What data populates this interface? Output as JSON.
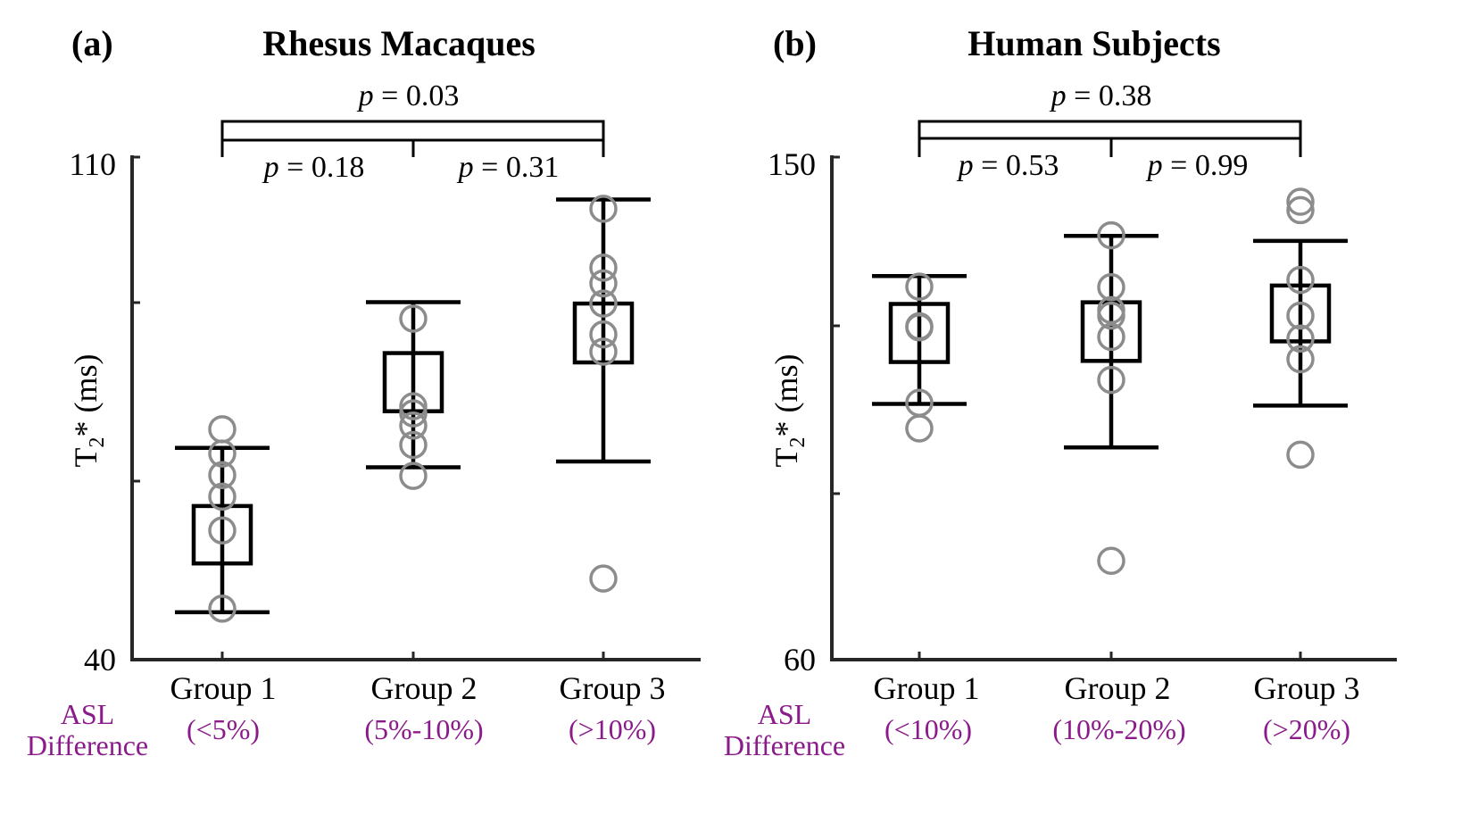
{
  "asl_label_line1": "ASL",
  "asl_label_line2": "Difference",
  "accent_color": "#8B1A8B",
  "panels": [
    {
      "label": "(a)",
      "title": "Rhesus Macaques",
      "ylabel": "T",
      "ylabel_sub": "2",
      "ylabel_suffix": "* (ms)",
      "ytick_top": "110",
      "ytick_bottom": "40",
      "categories": [
        "Group 1",
        "Group 2",
        "Group 3"
      ],
      "asl_ranges": [
        "(<5%)",
        "(5%-10%)",
        "(>10%)"
      ],
      "p_overall": "= 0.03",
      "p_12": "= 0.18",
      "p_23": "= 0.31"
    },
    {
      "label": "(b)",
      "title": "Human Subjects",
      "ylabel": "T",
      "ylabel_sub": "2",
      "ylabel_suffix": "* (ms)",
      "ytick_top": "150",
      "ytick_bottom": "60",
      "categories": [
        "Group 1",
        "Group 2",
        "Group 3"
      ],
      "asl_ranges": [
        "(<10%)",
        "(10%-20%)",
        "(>20%)"
      ],
      "p_overall": "= 0.38",
      "p_12": "= 0.53",
      "p_23": "= 0.99"
    }
  ],
  "chart_data": [
    {
      "type": "scatter",
      "title": "Rhesus Macaques",
      "ylabel": "T2* (ms)",
      "ylim": [
        40,
        110
      ],
      "categories": [
        "Group 1",
        "Group 2",
        "Group 3"
      ],
      "points": [
        [
          47.1,
          58.0,
          62.7,
          65.7,
          68.7,
          72.1
        ],
        [
          65.6,
          69.9,
          72.6,
          74.3,
          75.3,
          87.5
        ],
        [
          51.3,
          82.9,
          85.3,
          89.6,
          92.4,
          94.6,
          102.8
        ]
      ],
      "box_low": [
        53.4,
        74.6,
        81.4
      ],
      "box_high": [
        61.4,
        82.7,
        89.6
      ],
      "whisker_low": [
        46.6,
        66.8,
        67.6
      ],
      "whisker_high": [
        69.5,
        89.8,
        104.1
      ]
    },
    {
      "type": "scatter",
      "title": "Human Subjects",
      "ylabel": "T2* (ms)",
      "ylim": [
        60,
        150
      ],
      "categories": [
        "Group 1",
        "Group 2",
        "Group 3"
      ],
      "points": [
        [
          101.4,
          106.0,
          119.5,
          119.7,
          126.8
        ],
        [
          77.7,
          110.1,
          117.8,
          121.6,
          122.6,
          126.7,
          136.0
        ],
        [
          96.7,
          113.8,
          117.5,
          121.6,
          128.0,
          140.5,
          142.0
        ]
      ],
      "box_low": [
        113.3,
        113.5,
        117.0
      ],
      "box_high": [
        123.7,
        124.0,
        127.0
      ],
      "whisker_low": [
        105.8,
        98.0,
        105.5
      ],
      "whisker_high": [
        128.7,
        135.9,
        135.0
      ]
    }
  ]
}
